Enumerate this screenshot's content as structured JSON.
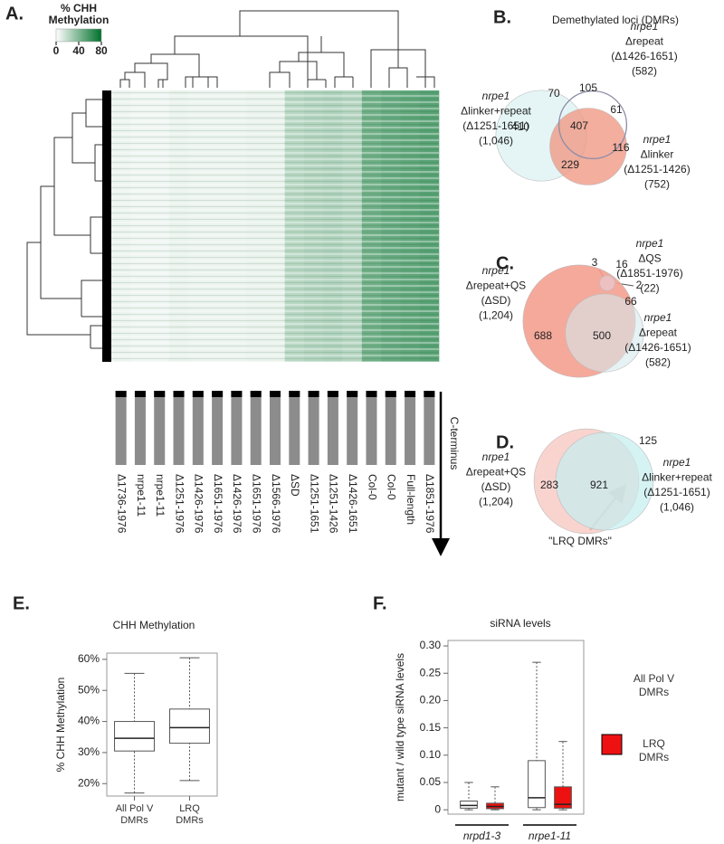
{
  "chart_data": [
    {
      "type": "heatmap",
      "panel": "A.",
      "colorbar_title": [
        "% CHH",
        "Methylation"
      ],
      "zlim": [
        0,
        80
      ],
      "zticks": [
        0,
        40,
        80
      ],
      "low_color": "#ffffff",
      "high_color": "#00702a",
      "columns": [
        "Δ1736-1976",
        "nrpe1-11",
        "nrpe1-11",
        "Δ1251-1976",
        "Δ1426-1976",
        "Δ1651-1976",
        "Δ1426-1976",
        "Δ1651-1976",
        "Δ1566-1976",
        "ΔSD",
        "Δ1251-1651",
        "Δ1251-1426",
        "Δ1426-1651",
        "Col-0",
        "Col-0",
        "Full-length",
        "Δ1851-1976"
      ],
      "values": [
        6,
        5,
        5,
        7,
        6,
        6,
        6,
        7,
        7,
        22,
        24,
        25,
        23,
        45,
        48,
        50,
        52
      ],
      "annotation": "C-terminus"
    },
    {
      "type": "venn",
      "panel": "B.",
      "title": "Demethylated loci (DMRs)",
      "sets": [
        {
          "genotype": "nrpe1",
          "name": "Δlinker+repeat",
          "range": "(Δ1251-1651)",
          "count": 1046,
          "count_label": "(1,046)",
          "color": "#dff3f3"
        },
        {
          "genotype": "nrpe1",
          "name": "Δlinker",
          "range": "(Δ1251-1426)",
          "count": 752,
          "count_label": "(752)",
          "color": "#f09a86"
        },
        {
          "genotype": "nrpe1",
          "name": "Δrepeat",
          "range": "(Δ1426-1651)",
          "count": 582,
          "count_label": "(582)",
          "color": "#8c8ca8"
        }
      ],
      "regions": [
        70,
        105,
        410,
        407,
        61,
        116,
        229
      ]
    },
    {
      "type": "venn",
      "panel": "C.",
      "sets": [
        {
          "genotype": "nrpe1",
          "name": "Δrepeat+QS",
          "range": "(ΔSD)",
          "count": 1204,
          "count_label": "(1,204)",
          "color": "#f4a090"
        },
        {
          "genotype": "nrpe1",
          "name": "Δrepeat",
          "range": "(Δ1426-1651)",
          "count": 582,
          "count_label": "(582)",
          "color": "#d6eaec"
        },
        {
          "genotype": "nrpe1",
          "name": "ΔQS",
          "range": "(Δ1851-1976)",
          "count": 22,
          "count_label": "(22)",
          "color": "#e8d0dc"
        }
      ],
      "regions": [
        3,
        16,
        2,
        66,
        688,
        500
      ]
    },
    {
      "type": "venn",
      "panel": "D.",
      "sets": [
        {
          "genotype": "nrpe1",
          "name": "Δrepeat+QS",
          "range": "(ΔSD)",
          "count": 1204,
          "count_label": "(1,204)",
          "color": "#f8cfca"
        },
        {
          "genotype": "nrpe1",
          "name": "Δlinker+repeat",
          "range": "(Δ1251-1651)",
          "count": 1046,
          "count_label": "(1,046)",
          "color": "#c5eef0"
        }
      ],
      "regions": [
        283,
        921,
        125
      ],
      "annotation": "\"LRQ DMRs\""
    },
    {
      "type": "box",
      "panel": "E.",
      "title": "CHH Methylation",
      "ylabel": "% CHH Methylation",
      "categories": [
        "All Pol V DMRs",
        "LRQ DMRs"
      ],
      "color": "#ffffff",
      "low": [
        17,
        21
      ],
      "q1": [
        30.5,
        33
      ],
      "median": [
        34.6,
        38
      ],
      "q3": [
        40,
        44
      ],
      "high": [
        55.5,
        60.5
      ],
      "ylim": [
        16,
        62
      ],
      "yticks": [
        {
          "value": 20,
          "label": "20%"
        },
        {
          "value": 30,
          "label": "30%"
        },
        {
          "value": 40,
          "label": "40%"
        },
        {
          "value": 50,
          "label": "50%"
        },
        {
          "value": 60,
          "label": "60%"
        }
      ]
    },
    {
      "type": "box",
      "panel": "F.",
      "title": "siRNA levels",
      "ylabel": "mutant / wild type siRNA levels",
      "groups": [
        "nrpd1-3",
        "nrpe1-11"
      ],
      "series": [
        {
          "name": "All Pol V DMRs",
          "color": "#ffffff",
          "low": [
            0,
            0
          ],
          "q1": [
            0.003,
            0.004
          ],
          "median": [
            0.008,
            0.022
          ],
          "q3": [
            0.016,
            0.09
          ],
          "high": [
            0.05,
            0.27
          ]
        },
        {
          "name": "LRQ DMRs",
          "color": "#ee1111",
          "low": [
            0,
            0
          ],
          "q1": [
            0.002,
            0.003
          ],
          "median": [
            0.006,
            0.01
          ],
          "q3": [
            0.012,
            0.042
          ],
          "high": [
            0.042,
            0.125
          ]
        }
      ],
      "ylim": [
        -0.008,
        0.31
      ],
      "yticks": [
        0,
        0.05,
        {
          "value": 0.1,
          "label": "0.10"
        },
        0.15,
        {
          "value": 0.2,
          "label": "0.20"
        },
        0.25,
        {
          "value": 0.3,
          "label": "0.30"
        }
      ]
    }
  ]
}
